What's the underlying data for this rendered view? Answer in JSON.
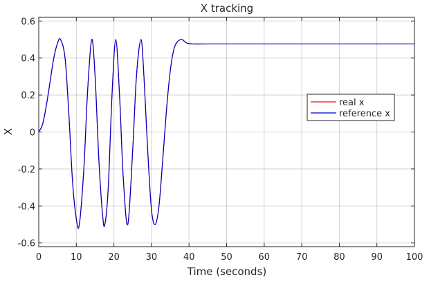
{
  "chart_data": {
    "type": "line",
    "title": "X tracking",
    "xlabel": "Time (seconds)",
    "ylabel": "X",
    "xlim": [
      0,
      100
    ],
    "ylim": [
      -0.62,
      0.62
    ],
    "xticks": [
      0,
      10,
      20,
      30,
      40,
      50,
      60,
      70,
      80,
      90,
      100
    ],
    "yticks": [
      -0.6,
      -0.4,
      -0.2,
      0,
      0.2,
      0.4,
      0.6
    ],
    "ytick_labels": [
      "-0.6",
      "-0.4",
      "-0.2",
      "0",
      "0.2",
      "0.4",
      "0.6"
    ],
    "grid": true,
    "legend": "right",
    "series": [
      {
        "name": "real x",
        "color": "#ff0000",
        "x": [
          0,
          1,
          2,
          3,
          4,
          5,
          5.8,
          7,
          8,
          9,
          10,
          10.8,
          12,
          13,
          14.1,
          15,
          16,
          17,
          17.6,
          18.5,
          19.5,
          20.5,
          21.5,
          22.5,
          23.7,
          25,
          26,
          27.2,
          28,
          29,
          30,
          31,
          32,
          33,
          34,
          35,
          36,
          37,
          38,
          38.5,
          39.5,
          41,
          45,
          60,
          80,
          100
        ],
        "y": [
          0,
          0.04,
          0.14,
          0.27,
          0.4,
          0.48,
          0.5,
          0.4,
          0.1,
          -0.27,
          -0.47,
          -0.5,
          -0.2,
          0.22,
          0.5,
          0.3,
          -0.15,
          -0.45,
          -0.5,
          -0.3,
          0.2,
          0.5,
          0.2,
          -0.25,
          -0.5,
          -0.1,
          0.3,
          0.5,
          0.3,
          -0.1,
          -0.42,
          -0.5,
          -0.4,
          -0.15,
          0.12,
          0.33,
          0.45,
          0.49,
          0.5,
          0.495,
          0.48,
          0.476,
          0.476,
          0.476,
          0.476,
          0.476
        ]
      },
      {
        "name": "reference x",
        "color": "#0000cc",
        "x": [
          0,
          1,
          2,
          3,
          4,
          5,
          5.8,
          7,
          8,
          9,
          10,
          10.8,
          12,
          13,
          14.1,
          15,
          16,
          17,
          17.6,
          18.5,
          19.5,
          20.5,
          21.5,
          22.5,
          23.7,
          25,
          26,
          27.2,
          28,
          29,
          30,
          31,
          32,
          33,
          34,
          35,
          36,
          37,
          38,
          38.5,
          39.5,
          41,
          45,
          60,
          80,
          100
        ],
        "y": [
          0,
          0.04,
          0.14,
          0.27,
          0.4,
          0.48,
          0.5,
          0.4,
          0.1,
          -0.27,
          -0.47,
          -0.5,
          -0.2,
          0.22,
          0.5,
          0.3,
          -0.15,
          -0.45,
          -0.5,
          -0.3,
          0.2,
          0.5,
          0.2,
          -0.25,
          -0.5,
          -0.1,
          0.3,
          0.5,
          0.3,
          -0.1,
          -0.42,
          -0.5,
          -0.4,
          -0.15,
          0.12,
          0.33,
          0.45,
          0.49,
          0.5,
          0.495,
          0.48,
          0.476,
          0.476,
          0.476,
          0.476,
          0.476
        ]
      }
    ]
  }
}
